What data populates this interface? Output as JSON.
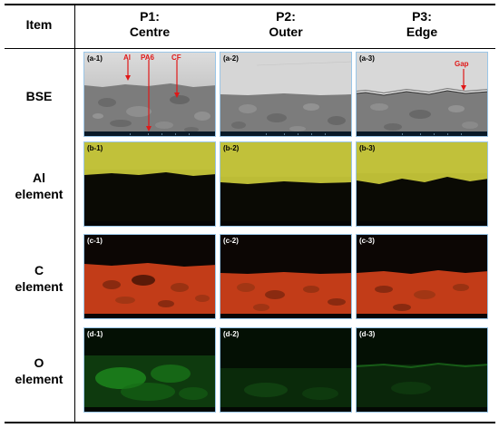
{
  "header": {
    "item": "Item",
    "columns": [
      {
        "line1": "P1:",
        "line2": "Centre"
      },
      {
        "line1": "P2:",
        "line2": "Outer"
      },
      {
        "line1": "P3:",
        "line2": "Edge"
      }
    ]
  },
  "rows": [
    {
      "line1": "BSE",
      "line2": "",
      "panels": [
        "(a-1)",
        "(a-2)",
        "(a-3)"
      ]
    },
    {
      "line1": "Al",
      "line2": "element",
      "panels": [
        "(b-1)",
        "(b-2)",
        "(b-3)"
      ]
    },
    {
      "line1": "C",
      "line2": "element",
      "panels": [
        "(c-1)",
        "(c-2)",
        "(c-3)"
      ]
    },
    {
      "line1": "O",
      "line2": "element",
      "panels": [
        "(d-1)",
        "(d-2)",
        "(d-3)"
      ]
    }
  ],
  "annotations": {
    "al": "Al",
    "pa6": "PA6",
    "cf": "CF",
    "gap": "Gap"
  },
  "colors": {
    "bse_top": "#d8d8d8",
    "bse_bottom": "#7a7a7a",
    "al_map": "#c4c43a",
    "c_map": "#c8401c",
    "o_map": "#1e7a1e",
    "annotation": "#e01818",
    "panel_border": "#9ac6e8"
  }
}
